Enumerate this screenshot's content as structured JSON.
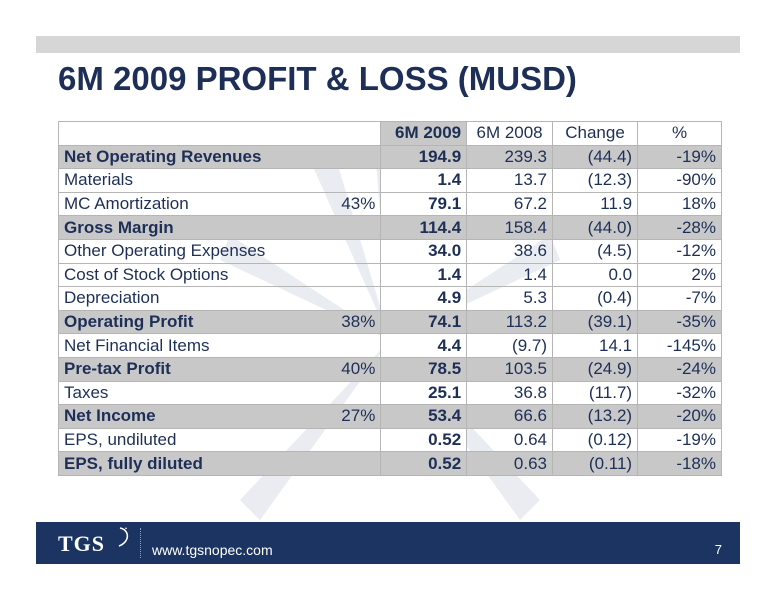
{
  "slide": {
    "title": "6M 2009 PROFIT & LOSS (MUSD)",
    "page_number": "7"
  },
  "footer": {
    "logo_text": "TGS",
    "url": "www.tgsnopec.com"
  },
  "table": {
    "headers": [
      "",
      "",
      "6M 2009",
      "6M 2008",
      "Change",
      "%"
    ],
    "rows": [
      {
        "label": "Net Operating Revenues",
        "margin": "",
        "cur": "194.9",
        "prev": "239.3",
        "chg": "(44.4)",
        "pct": "-19%"
      },
      {
        "label": "Materials",
        "margin": "",
        "cur": "1.4",
        "prev": "13.7",
        "chg": "(12.3)",
        "pct": "-90%"
      },
      {
        "label": "MC Amortization",
        "margin": "43%",
        "cur": "79.1",
        "prev": "67.2",
        "chg": "11.9",
        "pct": "18%"
      },
      {
        "label": "Gross Margin",
        "margin": "",
        "cur": "114.4",
        "prev": "158.4",
        "chg": "(44.0)",
        "pct": "-28%"
      },
      {
        "label": "Other Operating Expenses",
        "margin": "",
        "cur": "34.0",
        "prev": "38.6",
        "chg": "(4.5)",
        "pct": "-12%"
      },
      {
        "label": "Cost of Stock Options",
        "margin": "",
        "cur": "1.4",
        "prev": "1.4",
        "chg": "0.0",
        "pct": "2%"
      },
      {
        "label": "Depreciation",
        "margin": "",
        "cur": "4.9",
        "prev": "5.3",
        "chg": "(0.4)",
        "pct": "-7%"
      },
      {
        "label": "Operating Profit",
        "margin": "38%",
        "cur": "74.1",
        "prev": "113.2",
        "chg": "(39.1)",
        "pct": "-35%"
      },
      {
        "label": "Net Financial Items",
        "margin": "",
        "cur": "4.4",
        "prev": "(9.7)",
        "chg": "14.1",
        "pct": "-145%"
      },
      {
        "label": "Pre-tax Profit",
        "margin": "40%",
        "cur": "78.5",
        "prev": "103.5",
        "chg": "(24.9)",
        "pct": "-24%"
      },
      {
        "label": "Taxes",
        "margin": "",
        "cur": "25.1",
        "prev": "36.8",
        "chg": "(11.7)",
        "pct": "-32%"
      },
      {
        "label": "Net Income",
        "margin": "27%",
        "cur": "53.4",
        "prev": "66.6",
        "chg": "(13.2)",
        "pct": "-20%"
      },
      {
        "label": "EPS, undiluted",
        "margin": "",
        "cur": "0.52",
        "prev": "0.64",
        "chg": "(0.12)",
        "pct": "-19%"
      },
      {
        "label": "EPS, fully diluted",
        "margin": "",
        "cur": "0.52",
        "prev": "0.63",
        "chg": "(0.11)",
        "pct": "-18%"
      }
    ]
  },
  "colors": {
    "title": "#1e2f57",
    "shade": "#c8c8c8",
    "footer": "#1c3461"
  }
}
